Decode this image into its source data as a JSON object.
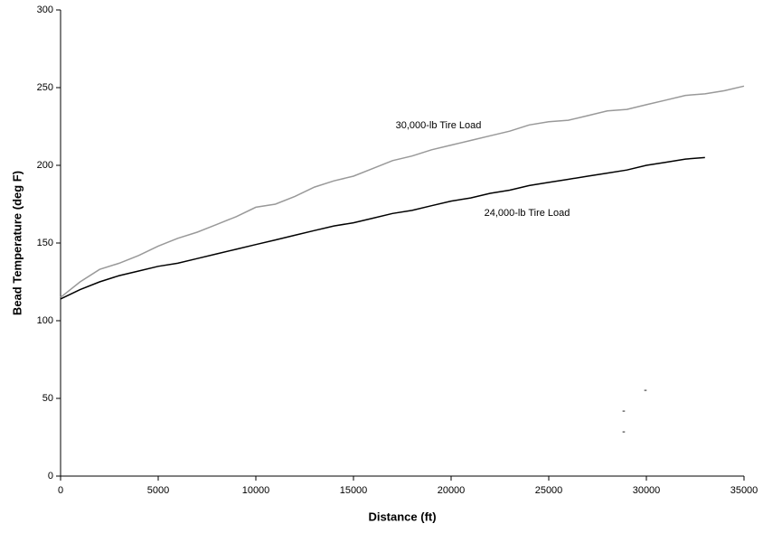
{
  "chart_data": {
    "type": "line",
    "x_label": "Distance (ft)",
    "y_label": "Bead Temperature (deg F)",
    "x": [
      0,
      1000,
      2000,
      3000,
      4000,
      5000,
      6000,
      7000,
      8000,
      9000,
      10000,
      11000,
      12000,
      13000,
      14000,
      15000,
      16000,
      17000,
      18000,
      19000,
      20000,
      21000,
      22000,
      23000,
      24000,
      25000,
      26000,
      27000,
      28000,
      29000,
      30000,
      31000,
      32000,
      33000,
      34000,
      35000
    ],
    "series": [
      {
        "name": "30,000-lb Tire Load",
        "color": "#999999",
        "values": [
          115,
          125,
          133,
          137,
          142,
          148,
          153,
          157,
          162,
          167,
          173,
          175,
          180,
          186,
          190,
          193,
          198,
          203,
          206,
          210,
          213,
          216,
          219,
          222,
          226,
          228,
          229,
          232,
          235,
          236,
          239,
          242,
          245,
          246,
          248,
          251
        ]
      },
      {
        "name": "24,000-lb Tire Load",
        "color": "#000000",
        "values": [
          114,
          120,
          125,
          129,
          132,
          135,
          137,
          140,
          143,
          146,
          149,
          152,
          155,
          158,
          161,
          163,
          166,
          169,
          171,
          174,
          177,
          179,
          182,
          184,
          187,
          189,
          191,
          193,
          195,
          197,
          200,
          202,
          204,
          205,
          null,
          null
        ]
      }
    ],
    "annotations": [
      "30,000-lb Tire Load",
      "24,000-lb Tire Load",
      "-",
      "-",
      "-"
    ],
    "xlim": [
      0,
      35000
    ],
    "xticks": [
      0,
      5000,
      10000,
      15000,
      20000,
      25000,
      30000,
      35000
    ],
    "ylim": [
      0,
      300
    ],
    "yticks": [
      0,
      50,
      100,
      150,
      200,
      250,
      300
    ],
    "grid": false
  }
}
